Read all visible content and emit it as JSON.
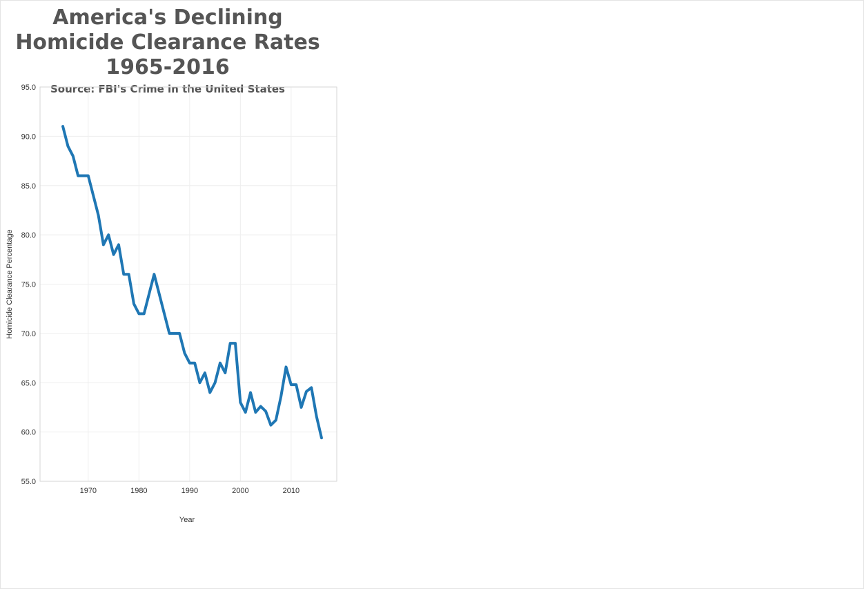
{
  "header": {
    "title": "America's Declining Homicide Clearance Rates 1965-2016",
    "subtitle": "Source: FBI's Crime in the United States"
  },
  "colors": {
    "line": "#1f77b4",
    "title": "#555555",
    "grid": "#eeeeee",
    "border": "#d6d6d6"
  },
  "chart_data": {
    "type": "line",
    "title": "America's Declining Homicide Clearance Rates 1965-2016",
    "subtitle": "Source: FBI's Crime in the United States",
    "xlabel": "Year",
    "ylabel": "Homicide Clearance Percentage",
    "xlim": [
      1960.5,
      2019
    ],
    "ylim": [
      55,
      95
    ],
    "xticks": [
      1970,
      1980,
      1990,
      2000,
      2010
    ],
    "yticks": [
      55,
      60,
      65,
      70,
      75,
      80,
      85,
      90,
      95
    ],
    "ytick_labels": [
      "55.0",
      "60.0",
      "65.0",
      "70.0",
      "75.0",
      "80.0",
      "85.0",
      "90.0",
      "95.0"
    ],
    "grid": true,
    "x": [
      1965,
      1966,
      1967,
      1968,
      1969,
      1970,
      1971,
      1972,
      1973,
      1974,
      1975,
      1976,
      1977,
      1978,
      1979,
      1980,
      1981,
      1982,
      1983,
      1984,
      1985,
      1986,
      1987,
      1988,
      1989,
      1990,
      1991,
      1992,
      1993,
      1994,
      1995,
      1996,
      1997,
      1998,
      1999,
      2000,
      2001,
      2002,
      2003,
      2004,
      2005,
      2006,
      2007,
      2008,
      2009,
      2010,
      2011,
      2012,
      2013,
      2014,
      2015,
      2016
    ],
    "series": [
      {
        "values": [
          91,
          89,
          88,
          86,
          86,
          86,
          84,
          82,
          79,
          80,
          78,
          79,
          76,
          76,
          73,
          72,
          72,
          74,
          76,
          74,
          72,
          70,
          70,
          70,
          68,
          67,
          67,
          65,
          66,
          64,
          65,
          67,
          66,
          69,
          69,
          63,
          62,
          64,
          62,
          62.6,
          62.1,
          60.7,
          61.2,
          63.6,
          66.6,
          64.8,
          64.8,
          62.5,
          64.1,
          64.5,
          61.6,
          59.4
        ]
      }
    ]
  }
}
